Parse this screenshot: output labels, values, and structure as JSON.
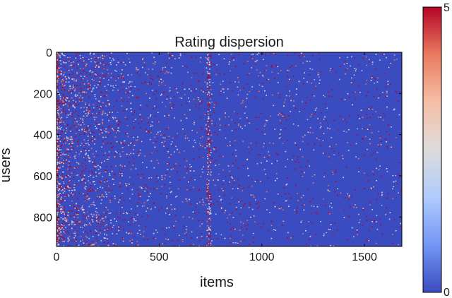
{
  "chart_data": {
    "type": "heatmap",
    "title": "Rating dispersion",
    "xlabel": "items",
    "ylabel": "users",
    "xlim": [
      0,
      1682
    ],
    "ylim": [
      943,
      0
    ],
    "x_ticks": [
      {
        "value": 0,
        "label": "0"
      },
      {
        "value": 500,
        "label": "500"
      },
      {
        "value": 1000,
        "label": "1000"
      },
      {
        "value": 1500,
        "label": "1500"
      }
    ],
    "y_ticks": [
      {
        "value": 0,
        "label": "0"
      },
      {
        "value": 200,
        "label": "200"
      },
      {
        "value": 400,
        "label": "400"
      },
      {
        "value": 600,
        "label": "600"
      },
      {
        "value": 800,
        "label": "800"
      }
    ],
    "colorbar": {
      "min": 0,
      "max": 5,
      "min_label": "0",
      "max_label": "5",
      "colormap": "coolwarm",
      "colors": [
        "#3b4cc0",
        "#7396f5",
        "#b0cbfc",
        "#dddcdc",
        "#f6bfa6",
        "#ea7b60",
        "#b40426"
      ]
    },
    "background_value": 0,
    "background_color": "#3b4cc0",
    "grid": false
  }
}
